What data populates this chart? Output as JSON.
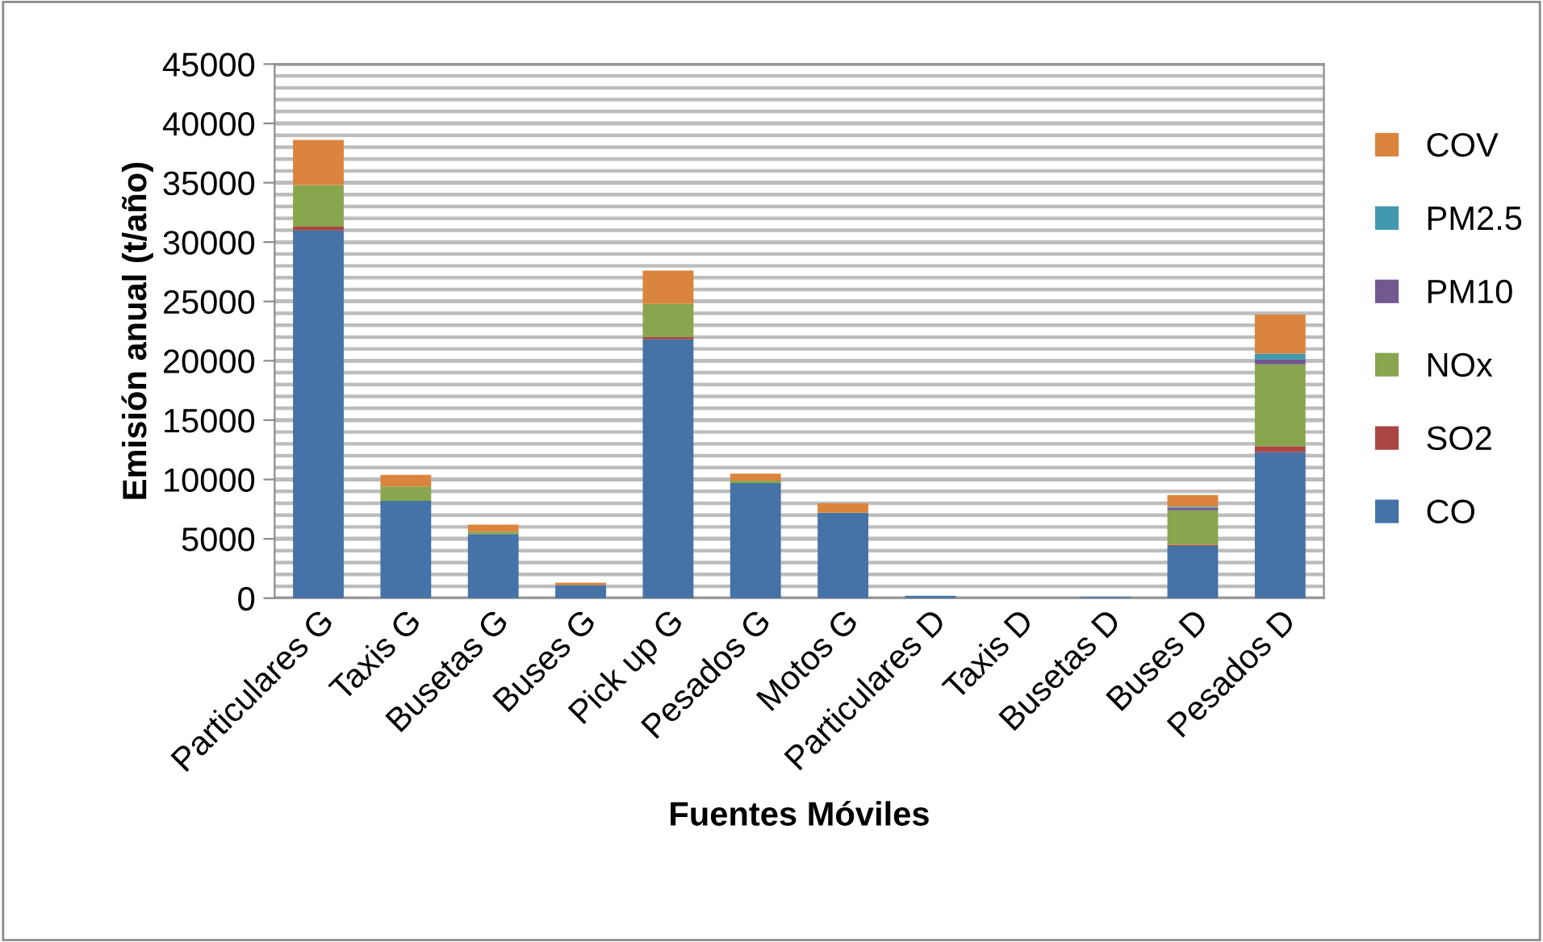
{
  "chart_data": {
    "type": "bar",
    "stacked": true,
    "xlabel": "Fuentes Móviles",
    "ylabel": "Emisión anual (t/año)",
    "categories": [
      "Particulares G",
      "Taxis G",
      "Busetas G",
      "Buses G",
      "Pick up G",
      "Pesados G",
      "Motos G",
      "Particulares D",
      "Taxis D",
      "Busetas D",
      "Buses D",
      "Pesados D"
    ],
    "series": [
      {
        "name": "CO",
        "color": "#4572a7",
        "values": [
          31000,
          8200,
          5400,
          1100,
          21800,
          9700,
          7200,
          200,
          null,
          100,
          4400,
          12300
        ]
      },
      {
        "name": "SO2",
        "color": "#aa4643",
        "values": [
          300,
          null,
          null,
          null,
          200,
          null,
          null,
          null,
          null,
          null,
          100,
          500
        ]
      },
      {
        "name": "NOx",
        "color": "#89a54e",
        "values": [
          3500,
          1200,
          200,
          null,
          2800,
          200,
          null,
          null,
          null,
          null,
          2900,
          6900
        ]
      },
      {
        "name": "PM10",
        "color": "#71588f",
        "values": [
          null,
          null,
          null,
          null,
          null,
          null,
          null,
          null,
          null,
          null,
          200,
          400
        ]
      },
      {
        "name": "PM2.5",
        "color": "#4198af",
        "values": [
          null,
          null,
          null,
          null,
          null,
          null,
          null,
          null,
          null,
          null,
          100,
          500
        ]
      },
      {
        "name": "COV",
        "color": "#db843d",
        "values": [
          3800,
          1000,
          600,
          200,
          2800,
          600,
          800,
          null,
          null,
          null,
          1000,
          3300
        ]
      }
    ],
    "ylim": [
      0,
      45000
    ],
    "yticks": [
      0,
      5000,
      10000,
      15000,
      20000,
      25000,
      30000,
      35000,
      40000,
      45000
    ],
    "grid": "y",
    "legend": "right"
  }
}
